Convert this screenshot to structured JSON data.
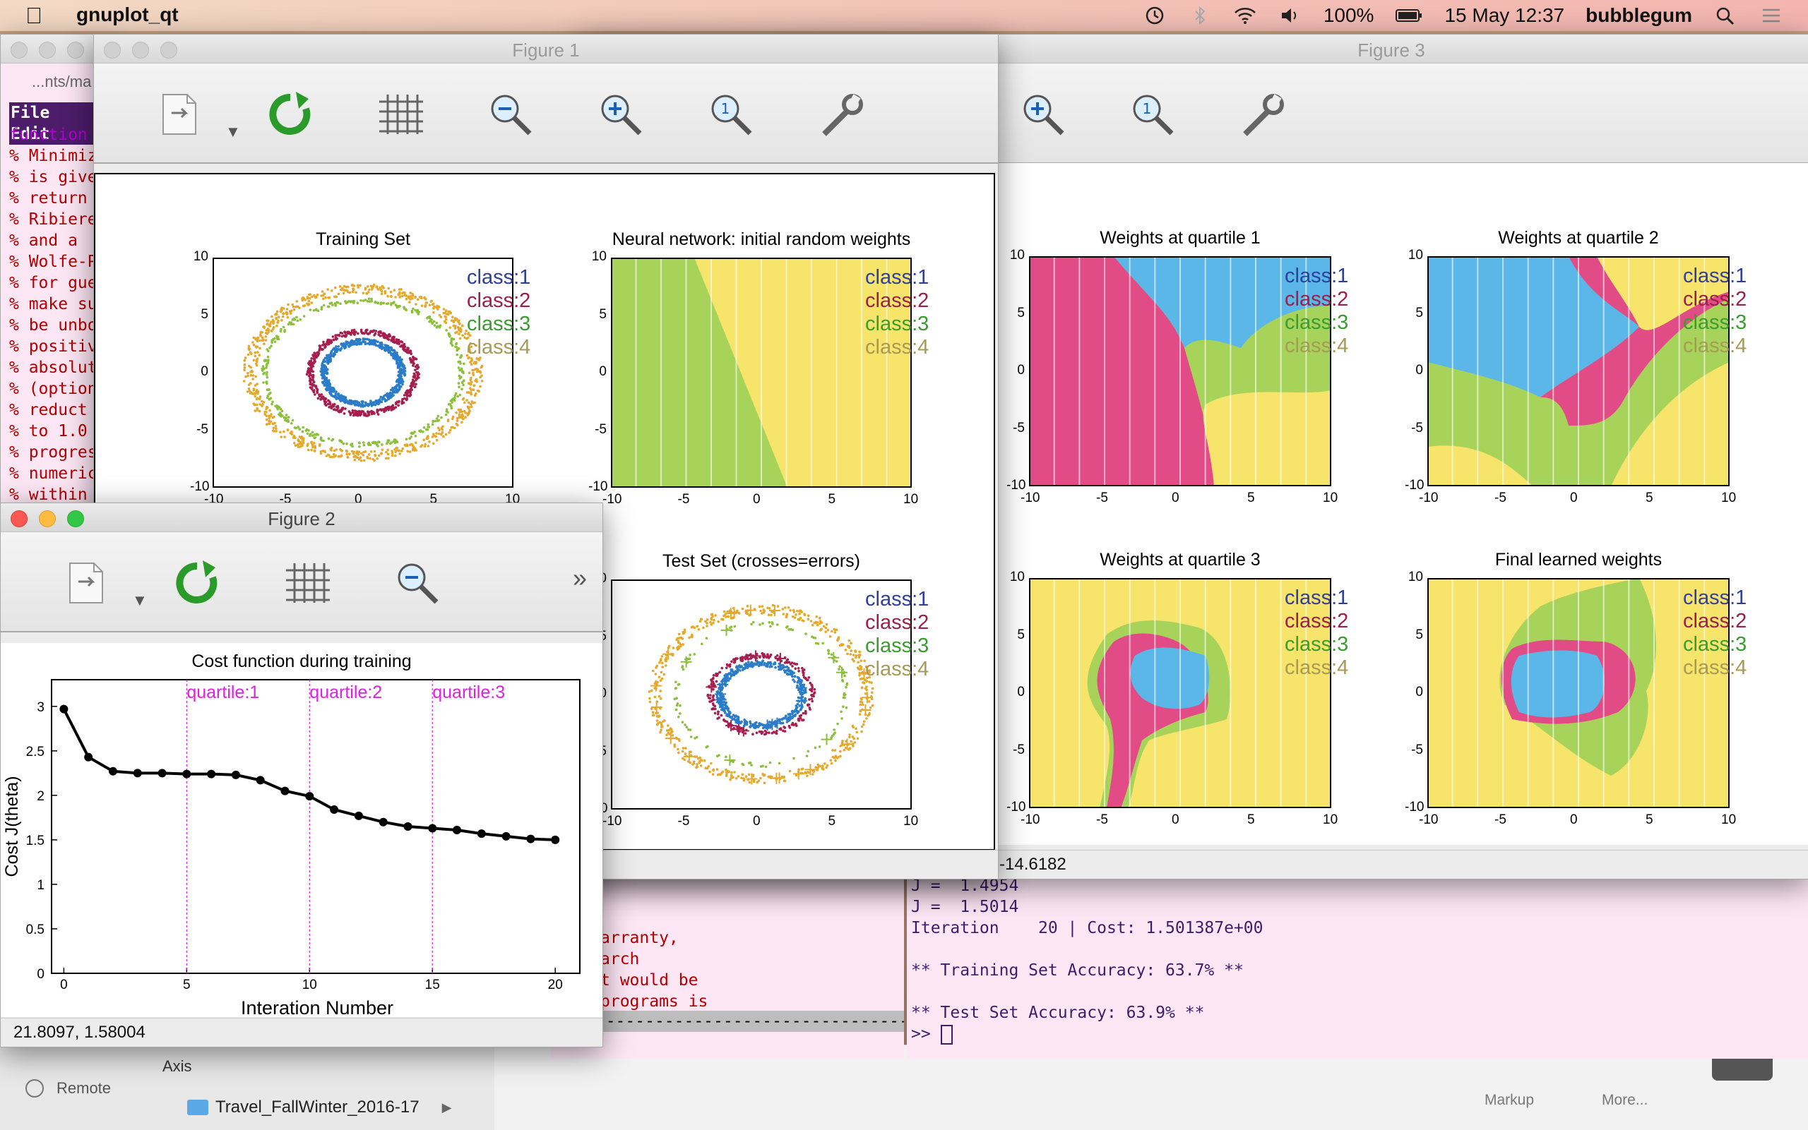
{
  "menubar": {
    "app_name": "gnuplot_qt",
    "battery": "100%",
    "datetime": "15 May  12:37",
    "user": "bubblegum",
    "icons": [
      "apple-icon",
      "time-machine-icon",
      "bluetooth-icon",
      "wifi-icon",
      "volume-icon",
      "battery-icon",
      "search-icon",
      "notification-icon"
    ]
  },
  "editor": {
    "path": "...nts/ma",
    "menu": "File Edit",
    "lines": [
      "function",
      "% Minimiz",
      "% is give",
      "% return",
      "% Ribiere",
      "% and a",
      "% Wolfe-P",
      "% for gue",
      "% make su",
      "% be unbo",
      "% positiv",
      "% absolut",
      "% (option",
      "% reduct",
      "% to 1.0",
      "% progres",
      "% numeric",
      "% within"
    ]
  },
  "figure1": {
    "title": "Figure 1",
    "plots": [
      {
        "title": "Training Set"
      },
      {
        "title": "Neural network: initial random weights"
      },
      {
        "title": "Test Set (crosses=errors)"
      }
    ],
    "legend": [
      "class:1",
      "class:2",
      "class:3",
      "class:4"
    ],
    "xticks": [
      "-10",
      "-5",
      "0",
      "5",
      "10"
    ],
    "yticks": [
      "10",
      "5",
      "0",
      "-5",
      "-10"
    ]
  },
  "figure3": {
    "title": "Figure 3",
    "plots": [
      {
        "title": "Weights at quartile 1"
      },
      {
        "title": "Weights at quartile 2"
      },
      {
        "title": "Weights at quartile 3"
      },
      {
        "title": "Final learned weights"
      }
    ],
    "status": "-14.6182"
  },
  "figure2": {
    "title": "Figure 2",
    "status": "21.8097,  1.58004",
    "more": "»"
  },
  "colors": {
    "class1": "#2f3f9c",
    "class2": "#9c1f4a",
    "class3": "#3b9c2f",
    "class4": "#a89a55",
    "region_blue": "#5bb7e8",
    "region_pink": "#e24c86",
    "region_green": "#a8d35b",
    "region_yellow": "#f7e46b"
  },
  "chart_data": {
    "type": "line",
    "title": "Cost function during training",
    "xlabel": "Interation Number",
    "ylabel": "Cost J(theta)",
    "xlim": [
      -0.5,
      21
    ],
    "ylim": [
      0,
      3.3
    ],
    "xticks": [
      0,
      5,
      10,
      15,
      20
    ],
    "yticks": [
      0,
      0.5,
      1,
      1.5,
      2,
      2.5,
      3
    ],
    "x": [
      0,
      1,
      2,
      3,
      4,
      5,
      6,
      7,
      8,
      9,
      10,
      11,
      12,
      13,
      14,
      15,
      16,
      17,
      18,
      19,
      20
    ],
    "values": [
      2.97,
      2.43,
      2.27,
      2.25,
      2.25,
      2.24,
      2.24,
      2.23,
      2.17,
      2.05,
      1.99,
      1.84,
      1.77,
      1.7,
      1.65,
      1.63,
      1.61,
      1.57,
      1.54,
      1.51,
      1.5
    ],
    "vlines": [
      {
        "x": 5,
        "label": "quartile:1"
      },
      {
        "x": 10,
        "label": "quartile:2"
      },
      {
        "x": 15,
        "label": "quartile:3"
      }
    ],
    "grid": false
  },
  "terminal_left": {
    "lines": [
      "",
      "",
      "",
      "arranty,",
      "arch",
      "t would be",
      "programs is",
      ") -------------------------------"
    ]
  },
  "terminal_right": {
    "lines": [
      "J =  1.4954",
      "J =  1.5014",
      "Iteration    20 | Cost: 1.501387e+00",
      "",
      "** Training Set Accuracy: 63.7% **",
      "",
      "** Test Set Accuracy: 63.9% **",
      ">> "
    ]
  },
  "finder": {
    "items": [
      "Axis",
      "Remote",
      "Travel_FallWinter_2016-17"
    ],
    "bottom_labels": [
      "Markup",
      "More..."
    ]
  }
}
